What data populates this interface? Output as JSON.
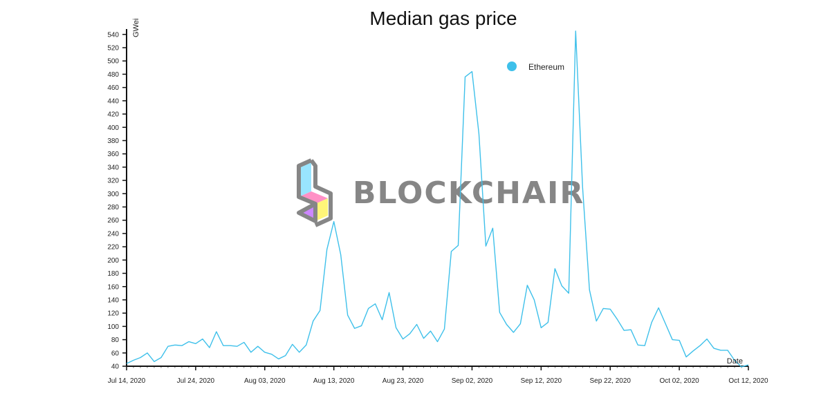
{
  "chart_data": {
    "type": "line",
    "title": "Median gas price",
    "xlabel": "Date",
    "ylabel": "GWei",
    "ylim": [
      40,
      545
    ],
    "y_ticks": [
      40,
      60,
      80,
      100,
      120,
      140,
      160,
      180,
      200,
      220,
      240,
      260,
      280,
      300,
      320,
      340,
      360,
      380,
      400,
      420,
      440,
      460,
      480,
      500,
      520,
      540
    ],
    "x_tick_labels": [
      "Jul 14, 2020",
      "Jul 24, 2020",
      "Aug 03, 2020",
      "Aug 13, 2020",
      "Aug 23, 2020",
      "Sep 02, 2020",
      "Sep 12, 2020",
      "Sep 22, 2020",
      "Oct 02, 2020",
      "Oct 12, 2020"
    ],
    "xlim": [
      "2020-07-14",
      "2020-10-12"
    ],
    "legend_position": "top-right",
    "series": [
      {
        "name": "Ethereum",
        "color": "#3ec0ea",
        "points": [
          [
            "2020-07-14",
            44
          ],
          [
            "2020-07-15",
            49
          ],
          [
            "2020-07-16",
            53
          ],
          [
            "2020-07-17",
            60
          ],
          [
            "2020-07-18",
            47
          ],
          [
            "2020-07-19",
            53
          ],
          [
            "2020-07-20",
            70
          ],
          [
            "2020-07-21",
            72
          ],
          [
            "2020-07-22",
            71
          ],
          [
            "2020-07-23",
            77
          ],
          [
            "2020-07-24",
            74
          ],
          [
            "2020-07-25",
            81
          ],
          [
            "2020-07-26",
            68
          ],
          [
            "2020-07-27",
            92
          ],
          [
            "2020-07-28",
            71
          ],
          [
            "2020-07-29",
            71
          ],
          [
            "2020-07-30",
            70
          ],
          [
            "2020-07-31",
            76
          ],
          [
            "2020-08-01",
            61
          ],
          [
            "2020-08-02",
            70
          ],
          [
            "2020-08-03",
            61
          ],
          [
            "2020-08-04",
            58
          ],
          [
            "2020-08-05",
            51
          ],
          [
            "2020-08-06",
            56
          ],
          [
            "2020-08-07",
            73
          ],
          [
            "2020-08-08",
            61
          ],
          [
            "2020-08-09",
            72
          ],
          [
            "2020-08-10",
            108
          ],
          [
            "2020-08-11",
            124
          ],
          [
            "2020-08-12",
            216
          ],
          [
            "2020-08-13",
            258
          ],
          [
            "2020-08-14",
            208
          ],
          [
            "2020-08-15",
            117
          ],
          [
            "2020-08-16",
            97
          ],
          [
            "2020-08-17",
            101
          ],
          [
            "2020-08-18",
            127
          ],
          [
            "2020-08-19",
            134
          ],
          [
            "2020-08-20",
            110
          ],
          [
            "2020-08-21",
            151
          ],
          [
            "2020-08-22",
            98
          ],
          [
            "2020-08-23",
            81
          ],
          [
            "2020-08-24",
            89
          ],
          [
            "2020-08-25",
            103
          ],
          [
            "2020-08-26",
            82
          ],
          [
            "2020-08-27",
            93
          ],
          [
            "2020-08-28",
            77
          ],
          [
            "2020-08-29",
            96
          ],
          [
            "2020-08-30",
            213
          ],
          [
            "2020-08-31",
            222
          ],
          [
            "2020-09-01",
            476
          ],
          [
            "2020-09-02",
            484
          ],
          [
            "2020-09-03",
            390
          ],
          [
            "2020-09-04",
            221
          ],
          [
            "2020-09-05",
            248
          ],
          [
            "2020-09-06",
            121
          ],
          [
            "2020-09-07",
            103
          ],
          [
            "2020-09-08",
            91
          ],
          [
            "2020-09-09",
            104
          ],
          [
            "2020-09-10",
            162
          ],
          [
            "2020-09-11",
            140
          ],
          [
            "2020-09-12",
            98
          ],
          [
            "2020-09-13",
            106
          ],
          [
            "2020-09-14",
            187
          ],
          [
            "2020-09-15",
            161
          ],
          [
            "2020-09-16",
            150
          ],
          [
            "2020-09-17",
            545
          ],
          [
            "2020-09-18",
            310
          ],
          [
            "2020-09-19",
            155
          ],
          [
            "2020-09-20",
            108
          ],
          [
            "2020-09-21",
            127
          ],
          [
            "2020-09-22",
            126
          ],
          [
            "2020-09-23",
            111
          ],
          [
            "2020-09-24",
            94
          ],
          [
            "2020-09-25",
            95
          ],
          [
            "2020-09-26",
            72
          ],
          [
            "2020-09-27",
            71
          ],
          [
            "2020-09-28",
            106
          ],
          [
            "2020-09-29",
            128
          ],
          [
            "2020-09-30",
            104
          ],
          [
            "2020-10-01",
            80
          ],
          [
            "2020-10-02",
            79
          ],
          [
            "2020-10-03",
            54
          ],
          [
            "2020-10-04",
            63
          ],
          [
            "2020-10-05",
            71
          ],
          [
            "2020-10-06",
            81
          ],
          [
            "2020-10-07",
            67
          ],
          [
            "2020-10-08",
            64
          ],
          [
            "2020-10-09",
            64
          ],
          [
            "2020-10-10",
            49
          ],
          [
            "2020-10-11",
            39
          ],
          [
            "2020-10-12",
            42
          ]
        ]
      }
    ]
  },
  "watermark": {
    "text": "BLOCKCHAIR",
    "color": "#7a7a7a"
  }
}
